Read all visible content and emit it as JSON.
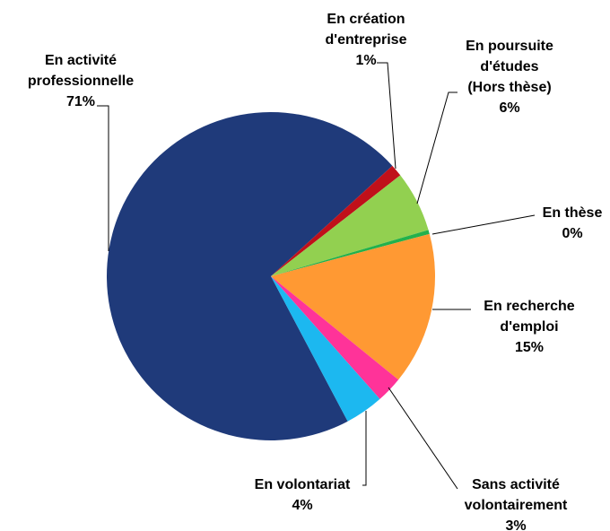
{
  "chart_data": {
    "type": "pie",
    "labels": [
      [
        "En activité",
        "professionnelle"
      ],
      [
        "En création",
        "d'entreprise"
      ],
      [
        "En poursuite",
        "d'études",
        "(Hors thèse)"
      ],
      [
        "En thèse"
      ],
      [
        "En recherche",
        "d'emploi"
      ],
      [
        "Sans activité",
        "volontairement"
      ],
      [
        "En volontariat"
      ]
    ],
    "values": [
      71,
      1.2,
      6,
      0.4,
      15,
      2.6,
      3.8
    ],
    "value_labels": [
      "71%",
      "1%",
      "6%",
      "0%",
      "15%",
      "3%",
      "4%"
    ],
    "colors": [
      "#1f3a7a",
      "#c0101a",
      "#92d050",
      "#22b14c",
      "#ff9933",
      "#ff3399",
      "#1cb8f0"
    ]
  }
}
